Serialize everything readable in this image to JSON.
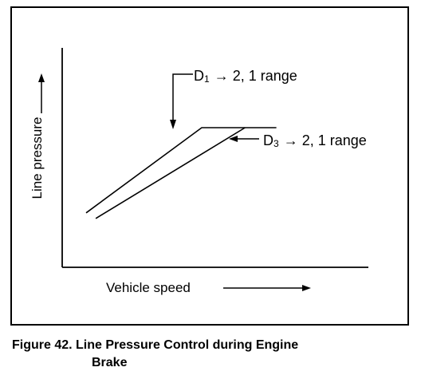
{
  "chart_data": {
    "type": "line",
    "title": "",
    "xlabel": "Vehicle speed",
    "ylabel": "Line pressure",
    "series": [
      {
        "name": "D1 → 2, 1 range",
        "label_main": "D",
        "label_sub": "1",
        "label_rest": "→ 2, 1 range",
        "points": [
          [
            0.0,
            0.19
          ],
          [
            0.48,
            0.8
          ],
          [
            0.79,
            0.8
          ]
        ]
      },
      {
        "name": "D3 → 2, 1 range",
        "label_main": "D",
        "label_sub": "3",
        "label_rest": "→ 2, 1 range",
        "points": [
          [
            0.04,
            0.15
          ],
          [
            0.66,
            0.8
          ]
        ]
      }
    ],
    "xlim": [
      0,
      1
    ],
    "ylim": [
      0,
      1
    ],
    "grid": false
  },
  "caption": {
    "line1": "Figure 42. Line Pressure Control during Engine",
    "line2": "Brake"
  }
}
